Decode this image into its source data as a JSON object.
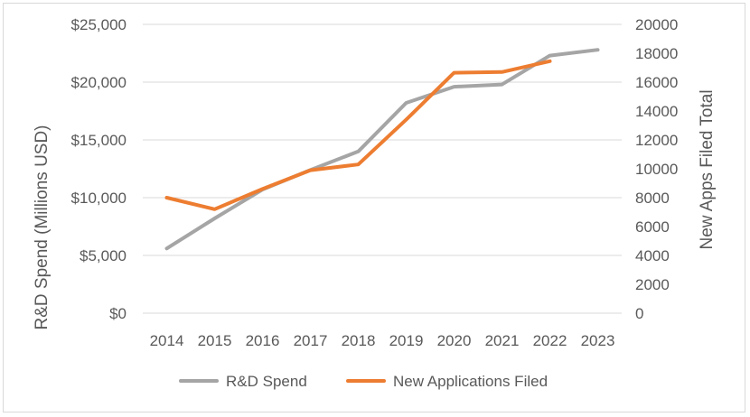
{
  "chart_data": {
    "type": "line",
    "title": "",
    "x": [
      "2014",
      "2015",
      "2016",
      "2017",
      "2018",
      "2019",
      "2020",
      "2021",
      "2022",
      "2023"
    ],
    "ylabel": "R&D Spend (Millions USD)",
    "y2label": "New Apps Filed Total",
    "ylim": [
      0,
      25000
    ],
    "y2lim": [
      0,
      20000
    ],
    "yticks": [
      "$0",
      "$5,000",
      "$10,000",
      "$15,000",
      "$20,000",
      "$25,000"
    ],
    "y2ticks": [
      "0",
      "2000",
      "4000",
      "6000",
      "8000",
      "10000",
      "12000",
      "14000",
      "16000",
      "18000",
      "20000"
    ],
    "grid": true,
    "legend_position": "bottom",
    "series": [
      {
        "name": "R&D Spend",
        "axis": "left",
        "color": "#a5a5a5",
        "values": [
          5600,
          8200,
          10700,
          12400,
          14000,
          18200,
          19600,
          19800,
          22300,
          22800
        ]
      },
      {
        "name": "New Applications Filed",
        "axis": "right",
        "color": "#ed7d31",
        "values": [
          8000,
          7200,
          8600,
          9900,
          10300,
          13400,
          16650,
          16700,
          17450,
          null
        ]
      }
    ]
  }
}
